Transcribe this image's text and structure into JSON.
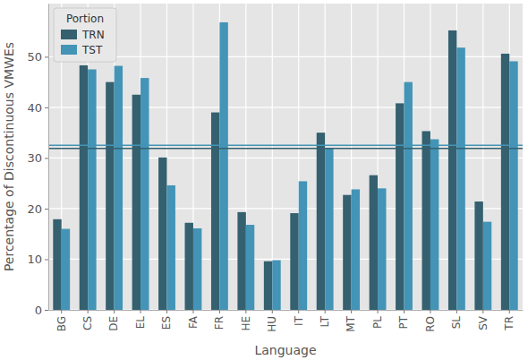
{
  "chart_data": {
    "type": "bar",
    "x_label": "Language",
    "y_label": "Percentage of Discontinuous VMWEs",
    "categories": [
      "BG",
      "CS",
      "DE",
      "EL",
      "ES",
      "FA",
      "FR",
      "HE",
      "HU",
      "IT",
      "LT",
      "MT",
      "PL",
      "PT",
      "RO",
      "SL",
      "SV",
      "TR"
    ],
    "series": [
      {
        "name": "TRN",
        "color": "#34606f",
        "values": [
          17.9,
          48.3,
          45.0,
          42.5,
          30.1,
          17.2,
          39.0,
          19.3,
          9.6,
          19.1,
          35.0,
          22.7,
          26.6,
          40.8,
          35.3,
          55.2,
          21.4,
          50.6
        ]
      },
      {
        "name": "TST",
        "color": "#4394b6",
        "values": [
          16.0,
          47.5,
          48.2,
          45.8,
          24.6,
          16.1,
          56.8,
          16.8,
          9.8,
          25.4,
          32.0,
          23.8,
          24.0,
          45.0,
          33.7,
          51.8,
          17.4,
          49.1
        ]
      }
    ],
    "reference_lines": [
      {
        "value": 31.9,
        "color": "#34606f"
      },
      {
        "value": 32.5,
        "color": "#4394b6"
      }
    ],
    "ylim": [
      0,
      60.5
    ],
    "yticks": [
      0,
      10,
      20,
      30,
      40,
      50
    ],
    "grid": true,
    "legend": "upper left",
    "legend_title": "Portion"
  }
}
